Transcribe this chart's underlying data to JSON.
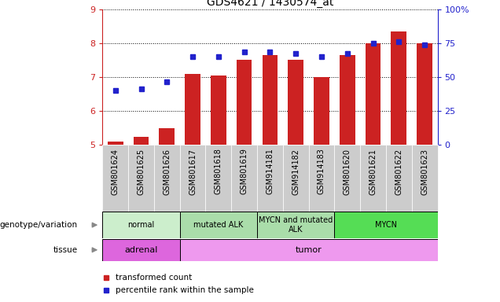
{
  "title": "GDS4621 / 1430574_at",
  "samples": [
    "GSM801624",
    "GSM801625",
    "GSM801626",
    "GSM801617",
    "GSM801618",
    "GSM801619",
    "GSM914181",
    "GSM914182",
    "GSM914183",
    "GSM801620",
    "GSM801621",
    "GSM801622",
    "GSM801623"
  ],
  "red_values": [
    5.1,
    5.25,
    5.5,
    7.1,
    7.05,
    7.5,
    7.65,
    7.5,
    7.0,
    7.65,
    8.0,
    8.35,
    8.0
  ],
  "blue_values": [
    6.6,
    6.65,
    6.85,
    7.6,
    7.6,
    7.75,
    7.75,
    7.7,
    7.6,
    7.7,
    8.0,
    8.05,
    7.95
  ],
  "ylim_left": [
    5,
    9
  ],
  "ylim_right": [
    0,
    100
  ],
  "yticks_left": [
    5,
    6,
    7,
    8,
    9
  ],
  "yticks_right": [
    0,
    25,
    50,
    75,
    100
  ],
  "ytick_labels_right": [
    "0",
    "25",
    "50",
    "75",
    "100%"
  ],
  "bar_bottom": 5,
  "bar_color": "#cc2222",
  "dot_color": "#2222cc",
  "groups": [
    {
      "label": "normal",
      "start": 0,
      "end": 3,
      "color": "#cceecc"
    },
    {
      "label": "mutated ALK",
      "start": 3,
      "end": 6,
      "color": "#aaddaa"
    },
    {
      "label": "MYCN and mutated\nALK",
      "start": 6,
      "end": 9,
      "color": "#aaddaa"
    },
    {
      "label": "MYCN",
      "start": 9,
      "end": 13,
      "color": "#55dd55"
    }
  ],
  "tissues": [
    {
      "label": "adrenal",
      "start": 0,
      "end": 3,
      "color": "#dd66dd"
    },
    {
      "label": "tumor",
      "start": 3,
      "end": 13,
      "color": "#ee99ee"
    }
  ],
  "left_labels": [
    "genotype/variation",
    "tissue"
  ],
  "legend_items": [
    {
      "label": "transformed count",
      "color": "#cc2222"
    },
    {
      "label": "percentile rank within the sample",
      "color": "#2222cc"
    }
  ],
  "bar_color_hex": "#cc2222",
  "dot_color_hex": "#2222cc",
  "left_axis_color": "#cc2222",
  "right_axis_color": "#2222cc",
  "tick_bg_color": "#cccccc"
}
